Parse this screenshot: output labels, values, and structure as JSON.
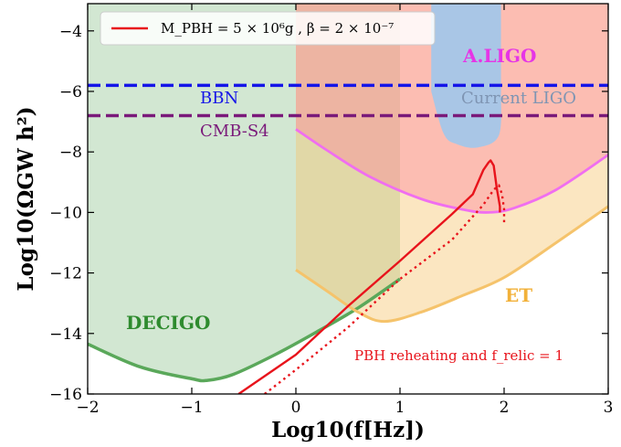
{
  "chart_data": {
    "type": "line",
    "xlabel": "Log10(f[Hz])",
    "ylabel": "Log10(ΩGW h²)",
    "xlim": [
      -2,
      3
    ],
    "ylim": [
      -16,
      -3.1
    ],
    "xticks": [
      -2,
      -1,
      0,
      1,
      2,
      3
    ],
    "yticks": [
      -16,
      -14,
      -12,
      -10,
      -8,
      -6,
      -4
    ],
    "xtick_labels": [
      "−2",
      "−1",
      "0",
      "1",
      "2",
      "3"
    ],
    "ytick_labels": [
      "−16",
      "−14",
      "−12",
      "−10",
      "−8",
      "−6",
      "−4"
    ],
    "legend": {
      "position": "top-left",
      "entries": [
        {
          "label": "M_PBH = 5 × 10⁶g , β = 2 × 10⁻⁷",
          "color": "#e8141c"
        }
      ]
    },
    "regions": [
      {
        "name": "DECIGO",
        "color": "#5aa85a",
        "boundary": [
          [
            -2,
            -14.35
          ],
          [
            -1.5,
            -15.1
          ],
          [
            -1.0,
            -15.5
          ],
          [
            -0.85,
            -15.55
          ],
          [
            -0.6,
            -15.35
          ],
          [
            -0.2,
            -14.7
          ],
          [
            0.2,
            -13.95
          ],
          [
            0.6,
            -13.15
          ],
          [
            1.0,
            -12.2
          ]
        ]
      },
      {
        "name": "ET",
        "color": "#f5c36b",
        "boundary": [
          [
            0,
            -11.9
          ],
          [
            0.3,
            -12.6
          ],
          [
            0.6,
            -13.3
          ],
          [
            0.85,
            -13.6
          ],
          [
            1.2,
            -13.3
          ],
          [
            1.6,
            -12.75
          ],
          [
            2.0,
            -12.15
          ],
          [
            2.5,
            -11.0
          ],
          [
            3.0,
            -9.8
          ]
        ]
      },
      {
        "name": "A.LIGO",
        "color": "#f06ef0",
        "boundary": [
          [
            0,
            -7.25
          ],
          [
            0.3,
            -7.95
          ],
          [
            0.7,
            -8.8
          ],
          [
            1.2,
            -9.55
          ],
          [
            1.6,
            -9.9
          ],
          [
            1.85,
            -10.0
          ],
          [
            2.1,
            -9.85
          ],
          [
            2.5,
            -9.25
          ],
          [
            3.0,
            -8.1
          ]
        ]
      },
      {
        "name": "Current LIGO",
        "color": "#a9c6e6",
        "boundary": [
          [
            1.3,
            -6.0
          ],
          [
            1.42,
            -7.4
          ],
          [
            1.55,
            -7.75
          ],
          [
            1.75,
            -7.85
          ],
          [
            1.95,
            -7.45
          ],
          [
            1.97,
            -6.0
          ]
        ]
      }
    ],
    "hlines": [
      {
        "name": "BBN",
        "y": -5.8,
        "color": "#1515e8"
      },
      {
        "name": "CMB-S4",
        "y": -6.8,
        "color": "#7a1a7a"
      }
    ],
    "series": [
      {
        "style": "solid",
        "color": "#e8141c",
        "x": [
          -0.55,
          0.0,
          0.5,
          1.0,
          1.5,
          1.7,
          1.8,
          1.85,
          1.87,
          1.9,
          1.93,
          1.95,
          1.96,
          1.96
        ],
        "y": [
          -16.0,
          -14.7,
          -13.1,
          -11.6,
          -10.05,
          -9.4,
          -8.6,
          -8.35,
          -8.28,
          -8.45,
          -9.2,
          -9.6,
          -9.8,
          -10.0
        ]
      },
      {
        "style": "dotted",
        "color": "#e8141c",
        "x": [
          -0.3,
          0.0,
          0.5,
          1.0,
          1.5,
          1.8,
          1.9,
          1.95,
          1.98,
          2.0,
          2.0
        ],
        "y": [
          -16.0,
          -15.2,
          -13.8,
          -12.2,
          -10.9,
          -9.75,
          -9.25,
          -9.1,
          -9.4,
          -9.9,
          -10.4
        ]
      }
    ],
    "annotation": "PBH reheating and f_relic = 1"
  },
  "labels": {
    "decigo": "DECIGO",
    "et": "ET",
    "aligo": "A.LIGO",
    "current_ligo": "Current LIGO",
    "bbn": "BBN",
    "cmbs4": "CMB-S4"
  }
}
